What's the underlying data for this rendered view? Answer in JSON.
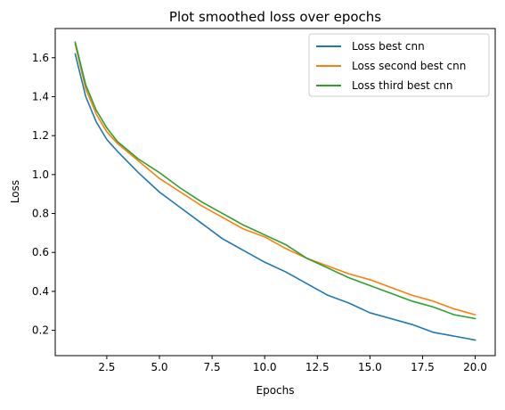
{
  "chart_data": {
    "type": "line",
    "title": "Plot smoothed loss over epochs",
    "xlabel": "Epochs",
    "ylabel": "Loss",
    "xlim": [
      0.05,
      20.95
    ],
    "ylim": [
      0.07,
      1.75
    ],
    "xticks": [
      2.5,
      5.0,
      7.5,
      10.0,
      12.5,
      15.0,
      17.5,
      20.0
    ],
    "xtick_labels": [
      "2.5",
      "5.0",
      "7.5",
      "10.0",
      "12.5",
      "15.0",
      "17.5",
      "20.0"
    ],
    "yticks": [
      0.2,
      0.4,
      0.6,
      0.8,
      1.0,
      1.2,
      1.4,
      1.6
    ],
    "ytick_labels": [
      "0.2",
      "0.4",
      "0.6",
      "0.8",
      "1.0",
      "1.2",
      "1.4",
      "1.6"
    ],
    "grid": false,
    "legend_position": "top-right",
    "x": [
      1,
      1.5,
      2,
      2.5,
      3,
      4,
      5,
      6,
      7,
      8,
      9,
      10,
      11,
      12,
      13,
      14,
      15,
      16,
      17,
      18,
      19,
      20
    ],
    "series": [
      {
        "name": "Loss best cnn",
        "color": "#1f77b4",
        "values": [
          1.62,
          1.4,
          1.27,
          1.18,
          1.12,
          1.01,
          0.91,
          0.83,
          0.75,
          0.67,
          0.61,
          0.55,
          0.5,
          0.44,
          0.38,
          0.34,
          0.29,
          0.26,
          0.23,
          0.19,
          0.17,
          0.15
        ]
      },
      {
        "name": "Loss second best cnn",
        "color": "#ff7f0e",
        "values": [
          1.67,
          1.44,
          1.31,
          1.22,
          1.16,
          1.07,
          0.98,
          0.91,
          0.84,
          0.78,
          0.72,
          0.68,
          0.62,
          0.57,
          0.53,
          0.49,
          0.46,
          0.42,
          0.38,
          0.35,
          0.31,
          0.28
        ]
      },
      {
        "name": "Loss third best cnn",
        "color": "#2ca02c",
        "values": [
          1.68,
          1.46,
          1.33,
          1.24,
          1.17,
          1.08,
          1.01,
          0.93,
          0.86,
          0.8,
          0.74,
          0.69,
          0.64,
          0.57,
          0.52,
          0.47,
          0.43,
          0.39,
          0.35,
          0.32,
          0.28,
          0.26
        ]
      }
    ]
  }
}
